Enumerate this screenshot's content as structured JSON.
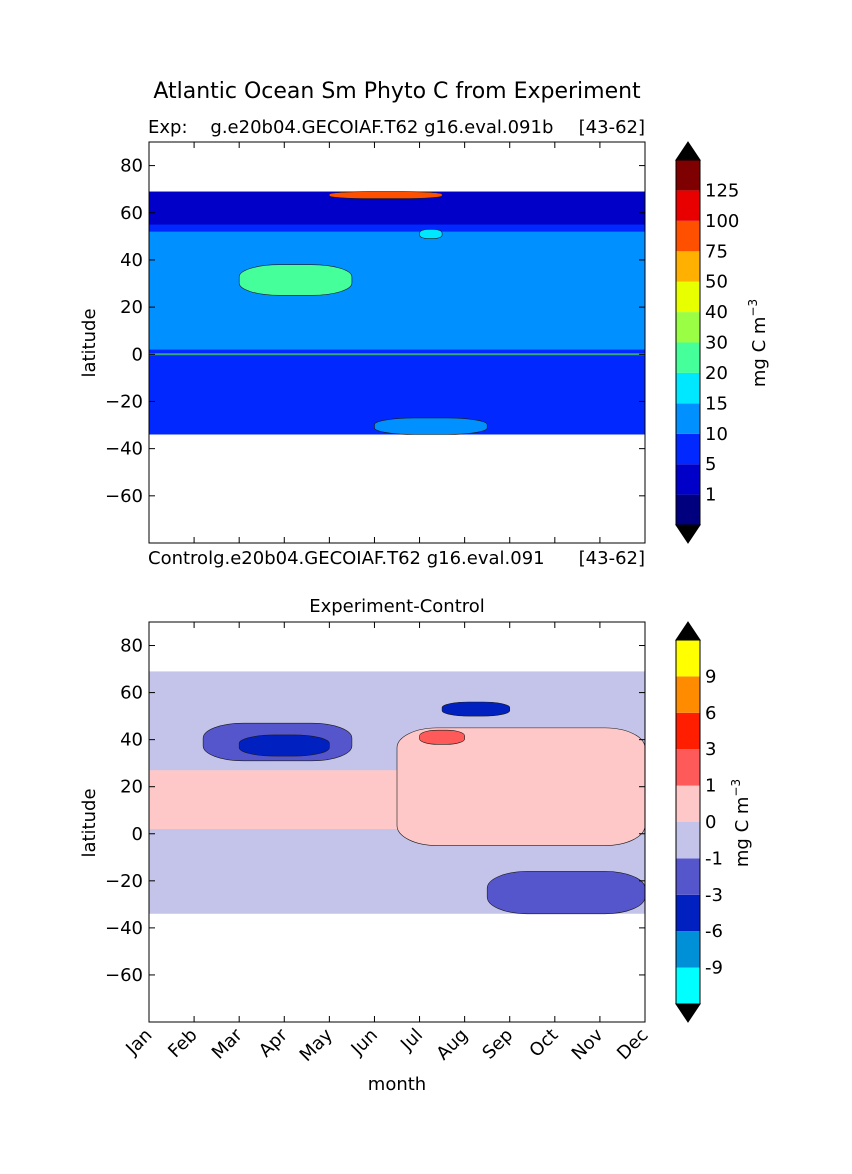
{
  "figure": {
    "title": "Atlantic Ocean Sm Phyto C from Experiment",
    "xlabel": "month"
  },
  "chart_data": [
    {
      "type": "heatmap",
      "panel": "experiment",
      "title_left": "Exp:    g.e20b04.GECOIAF.T62 g16.eval.091b",
      "title_right": "[43-62]",
      "ylabel": "latitude",
      "yticks": [
        80,
        60,
        40,
        20,
        0,
        -20,
        -40,
        -60
      ],
      "ylim": [
        -80,
        90
      ],
      "x_range_months": [
        1,
        12
      ],
      "data_lat_range": [
        -34,
        69
      ],
      "colorbar": {
        "label": "mg C m",
        "label_sup": "−3",
        "levels": [
          "1",
          "5",
          "10",
          "15",
          "20",
          "30",
          "40",
          "50",
          "75",
          "100",
          "125"
        ],
        "colors": [
          "#00007f",
          "#0000c8",
          "#0028ff",
          "#0090ff",
          "#00e8ff",
          "#44ff9a",
          "#9aff44",
          "#e8ff00",
          "#ffb000",
          "#ff5000",
          "#e80000",
          "#7f0000"
        ],
        "extend": "both",
        "under_color": "#000000",
        "over_color": "#000000"
      },
      "regions": [
        {
          "month_range": [
            1,
            12
          ],
          "lat_range": [
            -34,
            69
          ],
          "level": "1-5"
        },
        {
          "month_range": [
            1,
            12
          ],
          "lat_range": [
            -34,
            55
          ],
          "level": "5-10"
        },
        {
          "month_range": [
            1,
            12
          ],
          "lat_range": [
            2,
            52
          ],
          "level": "10-15"
        },
        {
          "month_range": [
            3,
            5.5
          ],
          "lat_range": [
            25,
            38
          ],
          "level": "20-30"
        },
        {
          "month_range": [
            7,
            7.5
          ],
          "lat_range": [
            49,
            53
          ],
          "level": "15-20"
        },
        {
          "month_range": [
            5,
            7.5
          ],
          "lat_range": [
            66,
            69
          ],
          "level": "75-125"
        },
        {
          "month_range": [
            6,
            8.5
          ],
          "lat_range": [
            -34,
            -27
          ],
          "level": "10-15"
        }
      ]
    },
    {
      "type": "heatmap",
      "panel": "difference",
      "title_left": "Controlg.e20b04.GECOIAF.T62 g16.eval.091",
      "title_right": "[43-62]",
      "subtitle": "Experiment-Control",
      "ylabel": "latitude",
      "yticks": [
        80,
        60,
        40,
        20,
        0,
        -20,
        -40,
        -60
      ],
      "ylim": [
        -80,
        90
      ],
      "x_range_months": [
        1,
        12
      ],
      "data_lat_range": [
        -34,
        69
      ],
      "xticks": [
        "Jan",
        "Feb",
        "Mar",
        "Apr",
        "May",
        "Jun",
        "Jul",
        "Aug",
        "Sep",
        "Oct",
        "Nov",
        "Dec"
      ],
      "colorbar": {
        "label": "mg C m",
        "label_sup": "−3",
        "levels": [
          "-9",
          "-6",
          "-3",
          "-1",
          "0",
          "1",
          "3",
          "6",
          "9"
        ],
        "colors": [
          "#00ffff",
          "#0090d8",
          "#0020c0",
          "#5555cc",
          "#c4c4ea",
          "#ffc8c8",
          "#ff5a5a",
          "#ff1e00",
          "#ff8c00",
          "#ffff00"
        ],
        "extend": "both",
        "under_color": "#000000",
        "over_color": "#000000"
      },
      "regions": [
        {
          "month_range": [
            1,
            12
          ],
          "lat_range": [
            -34,
            69
          ],
          "level": "-1-0"
        },
        {
          "month_range": [
            1,
            12
          ],
          "lat_range": [
            2,
            27
          ],
          "level": "0-1"
        },
        {
          "month_range": [
            6.5,
            12
          ],
          "lat_range": [
            -5,
            45
          ],
          "level": "0-1"
        },
        {
          "month_range": [
            2.2,
            5.5
          ],
          "lat_range": [
            31,
            47
          ],
          "level": "-3--1"
        },
        {
          "month_range": [
            3,
            5
          ],
          "lat_range": [
            33,
            42
          ],
          "level": "-6--3"
        },
        {
          "month_range": [
            7.5,
            9
          ],
          "lat_range": [
            50,
            56
          ],
          "level": "-6--3"
        },
        {
          "month_range": [
            7,
            8
          ],
          "lat_range": [
            38,
            44
          ],
          "level": "1-3"
        },
        {
          "month_range": [
            8.5,
            12
          ],
          "lat_range": [
            -34,
            -16
          ],
          "level": "-3--1"
        }
      ]
    }
  ]
}
